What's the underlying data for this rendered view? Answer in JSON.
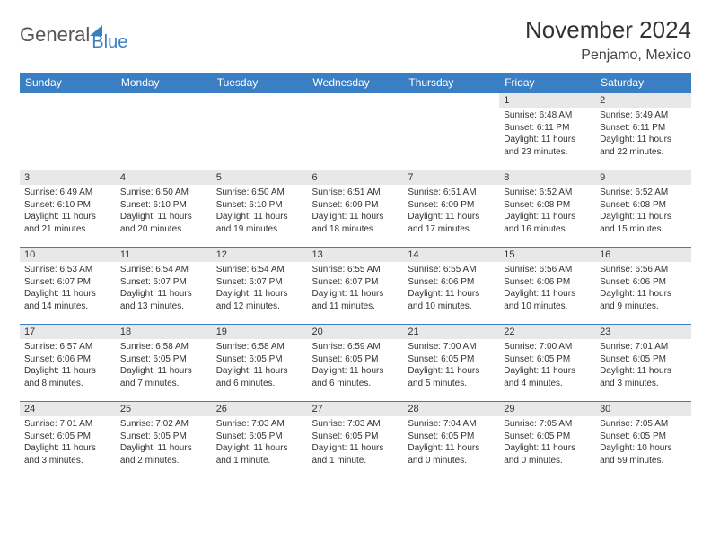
{
  "logo": {
    "text1": "General",
    "text2": "Blue"
  },
  "title": "November 2024",
  "location": "Penjamo, Mexico",
  "weekdays": [
    "Sunday",
    "Monday",
    "Tuesday",
    "Wednesday",
    "Thursday",
    "Friday",
    "Saturday"
  ],
  "colors": {
    "header_bg": "#3a7fc4",
    "header_text": "#ffffff",
    "daynum_bg": "#e8e8e8",
    "border": "#3a7fc4",
    "text": "#333333",
    "logo_gray": "#555555",
    "logo_blue": "#3a7fc4"
  },
  "weeks": [
    [
      {
        "blank": true
      },
      {
        "blank": true
      },
      {
        "blank": true
      },
      {
        "blank": true
      },
      {
        "blank": true
      },
      {
        "day": "1",
        "sunrise": "Sunrise: 6:48 AM",
        "sunset": "Sunset: 6:11 PM",
        "daylight": "Daylight: 11 hours and 23 minutes."
      },
      {
        "day": "2",
        "sunrise": "Sunrise: 6:49 AM",
        "sunset": "Sunset: 6:11 PM",
        "daylight": "Daylight: 11 hours and 22 minutes."
      }
    ],
    [
      {
        "day": "3",
        "sunrise": "Sunrise: 6:49 AM",
        "sunset": "Sunset: 6:10 PM",
        "daylight": "Daylight: 11 hours and 21 minutes."
      },
      {
        "day": "4",
        "sunrise": "Sunrise: 6:50 AM",
        "sunset": "Sunset: 6:10 PM",
        "daylight": "Daylight: 11 hours and 20 minutes."
      },
      {
        "day": "5",
        "sunrise": "Sunrise: 6:50 AM",
        "sunset": "Sunset: 6:10 PM",
        "daylight": "Daylight: 11 hours and 19 minutes."
      },
      {
        "day": "6",
        "sunrise": "Sunrise: 6:51 AM",
        "sunset": "Sunset: 6:09 PM",
        "daylight": "Daylight: 11 hours and 18 minutes."
      },
      {
        "day": "7",
        "sunrise": "Sunrise: 6:51 AM",
        "sunset": "Sunset: 6:09 PM",
        "daylight": "Daylight: 11 hours and 17 minutes."
      },
      {
        "day": "8",
        "sunrise": "Sunrise: 6:52 AM",
        "sunset": "Sunset: 6:08 PM",
        "daylight": "Daylight: 11 hours and 16 minutes."
      },
      {
        "day": "9",
        "sunrise": "Sunrise: 6:52 AM",
        "sunset": "Sunset: 6:08 PM",
        "daylight": "Daylight: 11 hours and 15 minutes."
      }
    ],
    [
      {
        "day": "10",
        "sunrise": "Sunrise: 6:53 AM",
        "sunset": "Sunset: 6:07 PM",
        "daylight": "Daylight: 11 hours and 14 minutes."
      },
      {
        "day": "11",
        "sunrise": "Sunrise: 6:54 AM",
        "sunset": "Sunset: 6:07 PM",
        "daylight": "Daylight: 11 hours and 13 minutes."
      },
      {
        "day": "12",
        "sunrise": "Sunrise: 6:54 AM",
        "sunset": "Sunset: 6:07 PM",
        "daylight": "Daylight: 11 hours and 12 minutes."
      },
      {
        "day": "13",
        "sunrise": "Sunrise: 6:55 AM",
        "sunset": "Sunset: 6:07 PM",
        "daylight": "Daylight: 11 hours and 11 minutes."
      },
      {
        "day": "14",
        "sunrise": "Sunrise: 6:55 AM",
        "sunset": "Sunset: 6:06 PM",
        "daylight": "Daylight: 11 hours and 10 minutes."
      },
      {
        "day": "15",
        "sunrise": "Sunrise: 6:56 AM",
        "sunset": "Sunset: 6:06 PM",
        "daylight": "Daylight: 11 hours and 10 minutes."
      },
      {
        "day": "16",
        "sunrise": "Sunrise: 6:56 AM",
        "sunset": "Sunset: 6:06 PM",
        "daylight": "Daylight: 11 hours and 9 minutes."
      }
    ],
    [
      {
        "day": "17",
        "sunrise": "Sunrise: 6:57 AM",
        "sunset": "Sunset: 6:06 PM",
        "daylight": "Daylight: 11 hours and 8 minutes."
      },
      {
        "day": "18",
        "sunrise": "Sunrise: 6:58 AM",
        "sunset": "Sunset: 6:05 PM",
        "daylight": "Daylight: 11 hours and 7 minutes."
      },
      {
        "day": "19",
        "sunrise": "Sunrise: 6:58 AM",
        "sunset": "Sunset: 6:05 PM",
        "daylight": "Daylight: 11 hours and 6 minutes."
      },
      {
        "day": "20",
        "sunrise": "Sunrise: 6:59 AM",
        "sunset": "Sunset: 6:05 PM",
        "daylight": "Daylight: 11 hours and 6 minutes."
      },
      {
        "day": "21",
        "sunrise": "Sunrise: 7:00 AM",
        "sunset": "Sunset: 6:05 PM",
        "daylight": "Daylight: 11 hours and 5 minutes."
      },
      {
        "day": "22",
        "sunrise": "Sunrise: 7:00 AM",
        "sunset": "Sunset: 6:05 PM",
        "daylight": "Daylight: 11 hours and 4 minutes."
      },
      {
        "day": "23",
        "sunrise": "Sunrise: 7:01 AM",
        "sunset": "Sunset: 6:05 PM",
        "daylight": "Daylight: 11 hours and 3 minutes."
      }
    ],
    [
      {
        "day": "24",
        "sunrise": "Sunrise: 7:01 AM",
        "sunset": "Sunset: 6:05 PM",
        "daylight": "Daylight: 11 hours and 3 minutes."
      },
      {
        "day": "25",
        "sunrise": "Sunrise: 7:02 AM",
        "sunset": "Sunset: 6:05 PM",
        "daylight": "Daylight: 11 hours and 2 minutes."
      },
      {
        "day": "26",
        "sunrise": "Sunrise: 7:03 AM",
        "sunset": "Sunset: 6:05 PM",
        "daylight": "Daylight: 11 hours and 1 minute."
      },
      {
        "day": "27",
        "sunrise": "Sunrise: 7:03 AM",
        "sunset": "Sunset: 6:05 PM",
        "daylight": "Daylight: 11 hours and 1 minute."
      },
      {
        "day": "28",
        "sunrise": "Sunrise: 7:04 AM",
        "sunset": "Sunset: 6:05 PM",
        "daylight": "Daylight: 11 hours and 0 minutes."
      },
      {
        "day": "29",
        "sunrise": "Sunrise: 7:05 AM",
        "sunset": "Sunset: 6:05 PM",
        "daylight": "Daylight: 11 hours and 0 minutes."
      },
      {
        "day": "30",
        "sunrise": "Sunrise: 7:05 AM",
        "sunset": "Sunset: 6:05 PM",
        "daylight": "Daylight: 10 hours and 59 minutes."
      }
    ]
  ]
}
